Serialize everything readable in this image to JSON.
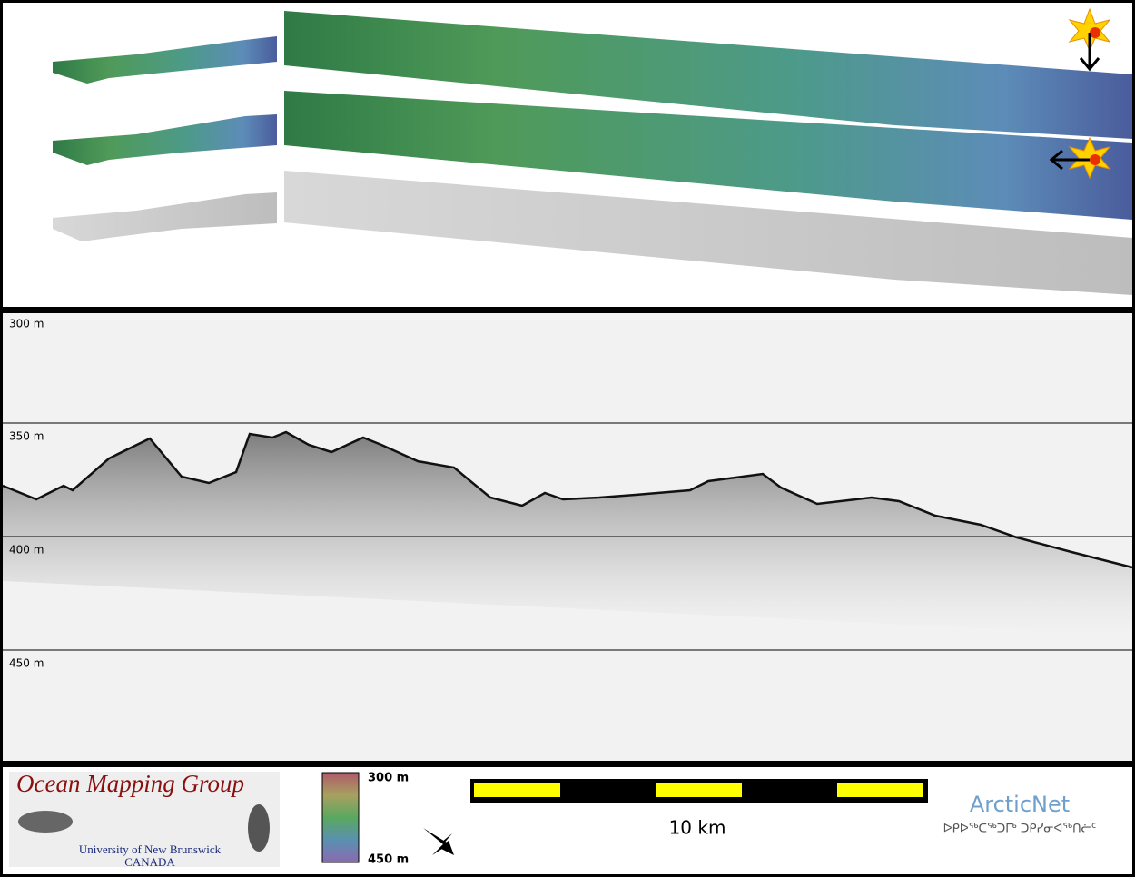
{
  "echogram": {
    "depth_labels": [
      "300 m",
      "350 m",
      "400 m",
      "450 m"
    ]
  },
  "footer": {
    "logo": {
      "title": "Ocean Mapping Group",
      "subtitle": "University of New Brunswick",
      "country": "CANADA"
    },
    "colorbar": {
      "top": "300 m",
      "bottom": "450 m"
    },
    "scale_bar": "10 km",
    "partner": {
      "name": "ArcticNet",
      "syllabics": "ᐅᑭᐅᖅᑕᖅᑐᒥᒃ ᑐᑭᓯᓂᐊᖅᑎᓖᑦ"
    }
  }
}
